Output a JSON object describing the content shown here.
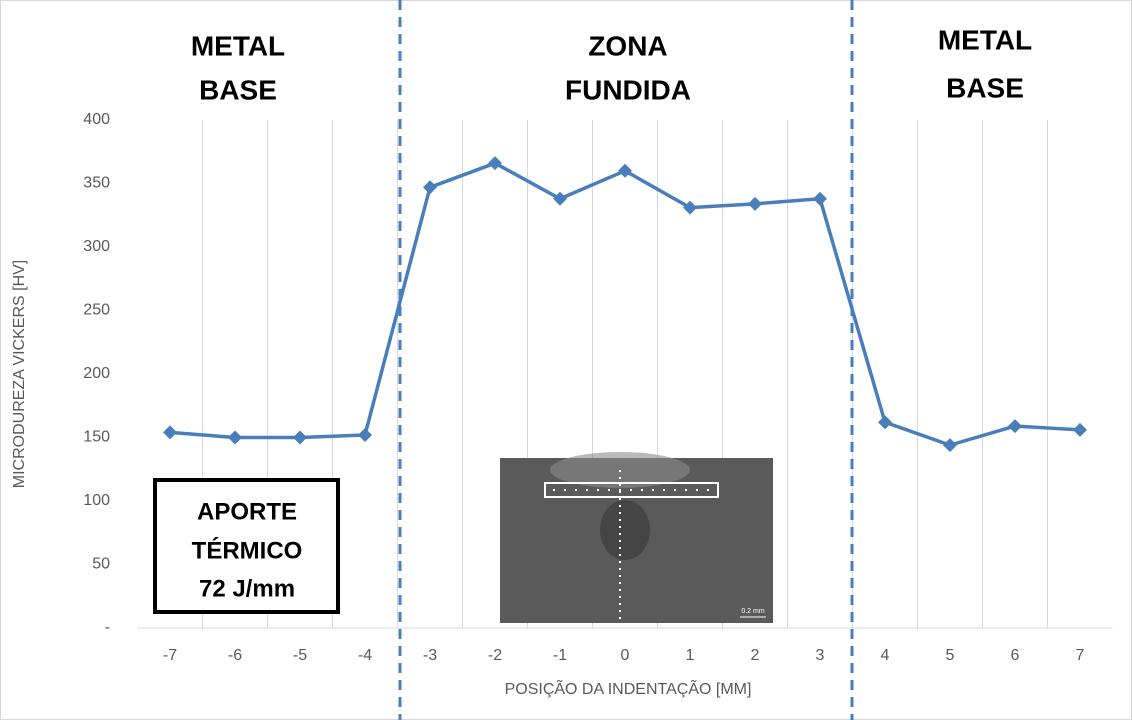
{
  "chart_data": {
    "type": "line",
    "x": [
      -7,
      -6,
      -5,
      -4,
      -3,
      -2,
      -1,
      0,
      1,
      2,
      3,
      4,
      5,
      6,
      7
    ],
    "series": [
      {
        "name": "Microdureza",
        "color": "#4a7ebb",
        "values": [
          154,
          150,
          150,
          152,
          347,
          366,
          338,
          360,
          331,
          334,
          338,
          162,
          144,
          159,
          156
        ]
      }
    ],
    "xlim": [
      -7.5,
      7.5
    ],
    "xticks": [
      -7,
      -6,
      -5,
      -4,
      -3,
      -2,
      -1,
      0,
      1,
      2,
      3,
      4,
      5,
      6,
      7
    ],
    "ylim": [
      0,
      400
    ],
    "yticks": [
      {
        "value": 0,
        "label": "-"
      },
      50,
      100,
      150,
      200,
      250,
      300,
      350,
      400
    ],
    "xlabel": "POSIÇÃO DA INDENTAÇÃO [MM]",
    "ylabel": "MICRODUREZA VICKERS [HV]",
    "annotations": [
      [
        "METAL",
        "BASE"
      ],
      [
        "ZONA",
        "FUNDIDA"
      ],
      [
        "METAL",
        "BASE"
      ],
      [
        "APORTE",
        "TÉRMICO",
        "72 J/mm"
      ]
    ],
    "scale_bar": "0.2 mm"
  }
}
